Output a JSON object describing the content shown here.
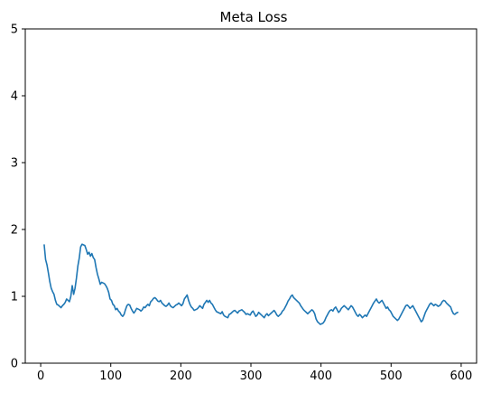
{
  "chart_data": {
    "type": "line",
    "title": "Meta Loss",
    "xlabel": "",
    "ylabel": "",
    "xlim": [
      -22,
      622
    ],
    "ylim": [
      0,
      5
    ],
    "x_ticks": [
      0,
      100,
      200,
      300,
      400,
      500,
      600
    ],
    "y_ticks": [
      0,
      1,
      2,
      3,
      4,
      5
    ],
    "grid": false,
    "legend": "none",
    "series": [
      {
        "color": "#1f77b4",
        "points": [
          [
            5,
            1.77
          ],
          [
            7,
            1.55
          ],
          [
            9,
            1.47
          ],
          [
            11,
            1.35
          ],
          [
            13,
            1.22
          ],
          [
            15,
            1.12
          ],
          [
            17,
            1.07
          ],
          [
            19,
            1.03
          ],
          [
            21,
            0.94
          ],
          [
            23,
            0.88
          ],
          [
            25,
            0.87
          ],
          [
            27,
            0.85
          ],
          [
            29,
            0.83
          ],
          [
            31,
            0.86
          ],
          [
            33,
            0.88
          ],
          [
            35,
            0.91
          ],
          [
            37,
            0.96
          ],
          [
            39,
            0.94
          ],
          [
            41,
            0.92
          ],
          [
            43,
            1.0
          ],
          [
            45,
            1.16
          ],
          [
            47,
            1.03
          ],
          [
            49,
            1.12
          ],
          [
            51,
            1.27
          ],
          [
            53,
            1.45
          ],
          [
            55,
            1.57
          ],
          [
            57,
            1.74
          ],
          [
            59,
            1.78
          ],
          [
            61,
            1.77
          ],
          [
            63,
            1.76
          ],
          [
            65,
            1.7
          ],
          [
            67,
            1.63
          ],
          [
            69,
            1.66
          ],
          [
            71,
            1.6
          ],
          [
            73,
            1.64
          ],
          [
            75,
            1.58
          ],
          [
            77,
            1.55
          ],
          [
            79,
            1.43
          ],
          [
            81,
            1.33
          ],
          [
            83,
            1.26
          ],
          [
            85,
            1.18
          ],
          [
            87,
            1.21
          ],
          [
            89,
            1.2
          ],
          [
            91,
            1.19
          ],
          [
            93,
            1.16
          ],
          [
            95,
            1.12
          ],
          [
            97,
            1.06
          ],
          [
            99,
            0.96
          ],
          [
            101,
            0.94
          ],
          [
            103,
            0.88
          ],
          [
            105,
            0.86
          ],
          [
            107,
            0.8
          ],
          [
            109,
            0.82
          ],
          [
            111,
            0.78
          ],
          [
            113,
            0.76
          ],
          [
            115,
            0.72
          ],
          [
            117,
            0.7
          ],
          [
            119,
            0.73
          ],
          [
            121,
            0.8
          ],
          [
            123,
            0.86
          ],
          [
            125,
            0.88
          ],
          [
            127,
            0.87
          ],
          [
            129,
            0.82
          ],
          [
            131,
            0.78
          ],
          [
            133,
            0.75
          ],
          [
            135,
            0.78
          ],
          [
            137,
            0.82
          ],
          [
            139,
            0.81
          ],
          [
            141,
            0.8
          ],
          [
            143,
            0.78
          ],
          [
            145,
            0.8
          ],
          [
            147,
            0.84
          ],
          [
            149,
            0.83
          ],
          [
            151,
            0.86
          ],
          [
            153,
            0.88
          ],
          [
            155,
            0.86
          ],
          [
            157,
            0.92
          ],
          [
            159,
            0.94
          ],
          [
            161,
            0.97
          ],
          [
            163,
            0.98
          ],
          [
            165,
            0.96
          ],
          [
            167,
            0.93
          ],
          [
            169,
            0.92
          ],
          [
            171,
            0.94
          ],
          [
            173,
            0.9
          ],
          [
            175,
            0.88
          ],
          [
            177,
            0.86
          ],
          [
            179,
            0.85
          ],
          [
            181,
            0.87
          ],
          [
            183,
            0.9
          ],
          [
            185,
            0.86
          ],
          [
            187,
            0.84
          ],
          [
            189,
            0.83
          ],
          [
            191,
            0.85
          ],
          [
            193,
            0.87
          ],
          [
            195,
            0.88
          ],
          [
            197,
            0.9
          ],
          [
            199,
            0.88
          ],
          [
            201,
            0.86
          ],
          [
            203,
            0.89
          ],
          [
            205,
            0.96
          ],
          [
            207,
            0.99
          ],
          [
            209,
            1.02
          ],
          [
            211,
            0.94
          ],
          [
            213,
            0.88
          ],
          [
            215,
            0.84
          ],
          [
            217,
            0.82
          ],
          [
            219,
            0.79
          ],
          [
            221,
            0.8
          ],
          [
            223,
            0.81
          ],
          [
            225,
            0.83
          ],
          [
            227,
            0.86
          ],
          [
            229,
            0.84
          ],
          [
            231,
            0.82
          ],
          [
            233,
            0.88
          ],
          [
            235,
            0.91
          ],
          [
            237,
            0.94
          ],
          [
            239,
            0.91
          ],
          [
            241,
            0.94
          ],
          [
            243,
            0.9
          ],
          [
            245,
            0.88
          ],
          [
            247,
            0.84
          ],
          [
            249,
            0.8
          ],
          [
            251,
            0.77
          ],
          [
            253,
            0.76
          ],
          [
            255,
            0.75
          ],
          [
            257,
            0.74
          ],
          [
            259,
            0.77
          ],
          [
            261,
            0.72
          ],
          [
            263,
            0.7
          ],
          [
            265,
            0.69
          ],
          [
            267,
            0.68
          ],
          [
            269,
            0.73
          ],
          [
            271,
            0.74
          ],
          [
            273,
            0.76
          ],
          [
            275,
            0.78
          ],
          [
            277,
            0.79
          ],
          [
            279,
            0.77
          ],
          [
            281,
            0.75
          ],
          [
            283,
            0.78
          ],
          [
            285,
            0.79
          ],
          [
            287,
            0.8
          ],
          [
            289,
            0.78
          ],
          [
            291,
            0.76
          ],
          [
            293,
            0.73
          ],
          [
            295,
            0.74
          ],
          [
            297,
            0.73
          ],
          [
            299,
            0.72
          ],
          [
            301,
            0.76
          ],
          [
            303,
            0.78
          ],
          [
            305,
            0.74
          ],
          [
            307,
            0.7
          ],
          [
            309,
            0.72
          ],
          [
            311,
            0.76
          ],
          [
            313,
            0.74
          ],
          [
            315,
            0.72
          ],
          [
            317,
            0.7
          ],
          [
            319,
            0.68
          ],
          [
            321,
            0.72
          ],
          [
            323,
            0.74
          ],
          [
            325,
            0.71
          ],
          [
            327,
            0.73
          ],
          [
            329,
            0.75
          ],
          [
            331,
            0.77
          ],
          [
            333,
            0.79
          ],
          [
            335,
            0.76
          ],
          [
            337,
            0.72
          ],
          [
            339,
            0.7
          ],
          [
            341,
            0.72
          ],
          [
            343,
            0.74
          ],
          [
            345,
            0.78
          ],
          [
            347,
            0.8
          ],
          [
            349,
            0.84
          ],
          [
            351,
            0.88
          ],
          [
            353,
            0.93
          ],
          [
            355,
            0.96
          ],
          [
            357,
            1.0
          ],
          [
            359,
            1.02
          ],
          [
            361,
            0.98
          ],
          [
            363,
            0.96
          ],
          [
            365,
            0.94
          ],
          [
            367,
            0.92
          ],
          [
            369,
            0.9
          ],
          [
            371,
            0.86
          ],
          [
            373,
            0.83
          ],
          [
            375,
            0.8
          ],
          [
            377,
            0.78
          ],
          [
            379,
            0.76
          ],
          [
            381,
            0.74
          ],
          [
            383,
            0.76
          ],
          [
            385,
            0.78
          ],
          [
            387,
            0.8
          ],
          [
            389,
            0.78
          ],
          [
            391,
            0.74
          ],
          [
            393,
            0.66
          ],
          [
            395,
            0.62
          ],
          [
            397,
            0.6
          ],
          [
            399,
            0.58
          ],
          [
            401,
            0.59
          ],
          [
            403,
            0.6
          ],
          [
            405,
            0.63
          ],
          [
            407,
            0.68
          ],
          [
            409,
            0.72
          ],
          [
            411,
            0.76
          ],
          [
            413,
            0.79
          ],
          [
            415,
            0.8
          ],
          [
            417,
            0.78
          ],
          [
            419,
            0.82
          ],
          [
            421,
            0.84
          ],
          [
            423,
            0.8
          ],
          [
            425,
            0.76
          ],
          [
            427,
            0.78
          ],
          [
            429,
            0.82
          ],
          [
            431,
            0.84
          ],
          [
            433,
            0.86
          ],
          [
            435,
            0.84
          ],
          [
            437,
            0.82
          ],
          [
            439,
            0.8
          ],
          [
            441,
            0.83
          ],
          [
            443,
            0.86
          ],
          [
            445,
            0.84
          ],
          [
            447,
            0.8
          ],
          [
            449,
            0.76
          ],
          [
            451,
            0.72
          ],
          [
            453,
            0.7
          ],
          [
            455,
            0.73
          ],
          [
            457,
            0.71
          ],
          [
            459,
            0.68
          ],
          [
            461,
            0.7
          ],
          [
            463,
            0.72
          ],
          [
            465,
            0.7
          ],
          [
            467,
            0.74
          ],
          [
            469,
            0.78
          ],
          [
            471,
            0.82
          ],
          [
            473,
            0.86
          ],
          [
            475,
            0.9
          ],
          [
            477,
            0.93
          ],
          [
            479,
            0.96
          ],
          [
            481,
            0.92
          ],
          [
            483,
            0.9
          ],
          [
            485,
            0.92
          ],
          [
            487,
            0.94
          ],
          [
            489,
            0.9
          ],
          [
            491,
            0.86
          ],
          [
            493,
            0.82
          ],
          [
            495,
            0.84
          ],
          [
            497,
            0.8
          ],
          [
            499,
            0.78
          ],
          [
            501,
            0.74
          ],
          [
            503,
            0.7
          ],
          [
            505,
            0.68
          ],
          [
            507,
            0.66
          ],
          [
            509,
            0.64
          ],
          [
            511,
            0.66
          ],
          [
            513,
            0.7
          ],
          [
            515,
            0.74
          ],
          [
            517,
            0.78
          ],
          [
            519,
            0.82
          ],
          [
            521,
            0.86
          ],
          [
            523,
            0.87
          ],
          [
            525,
            0.85
          ],
          [
            527,
            0.82
          ],
          [
            529,
            0.84
          ],
          [
            531,
            0.86
          ],
          [
            533,
            0.82
          ],
          [
            535,
            0.78
          ],
          [
            537,
            0.74
          ],
          [
            539,
            0.7
          ],
          [
            541,
            0.66
          ],
          [
            543,
            0.62
          ],
          [
            545,
            0.64
          ],
          [
            547,
            0.7
          ],
          [
            549,
            0.76
          ],
          [
            551,
            0.8
          ],
          [
            553,
            0.84
          ],
          [
            555,
            0.88
          ],
          [
            557,
            0.9
          ],
          [
            559,
            0.88
          ],
          [
            561,
            0.86
          ],
          [
            563,
            0.88
          ],
          [
            565,
            0.87
          ],
          [
            567,
            0.85
          ],
          [
            569,
            0.86
          ],
          [
            571,
            0.88
          ],
          [
            573,
            0.92
          ],
          [
            575,
            0.94
          ],
          [
            577,
            0.93
          ],
          [
            579,
            0.9
          ],
          [
            581,
            0.88
          ],
          [
            583,
            0.86
          ],
          [
            585,
            0.84
          ],
          [
            587,
            0.78
          ],
          [
            589,
            0.74
          ],
          [
            591,
            0.73
          ],
          [
            593,
            0.75
          ],
          [
            595,
            0.76
          ]
        ]
      }
    ]
  }
}
